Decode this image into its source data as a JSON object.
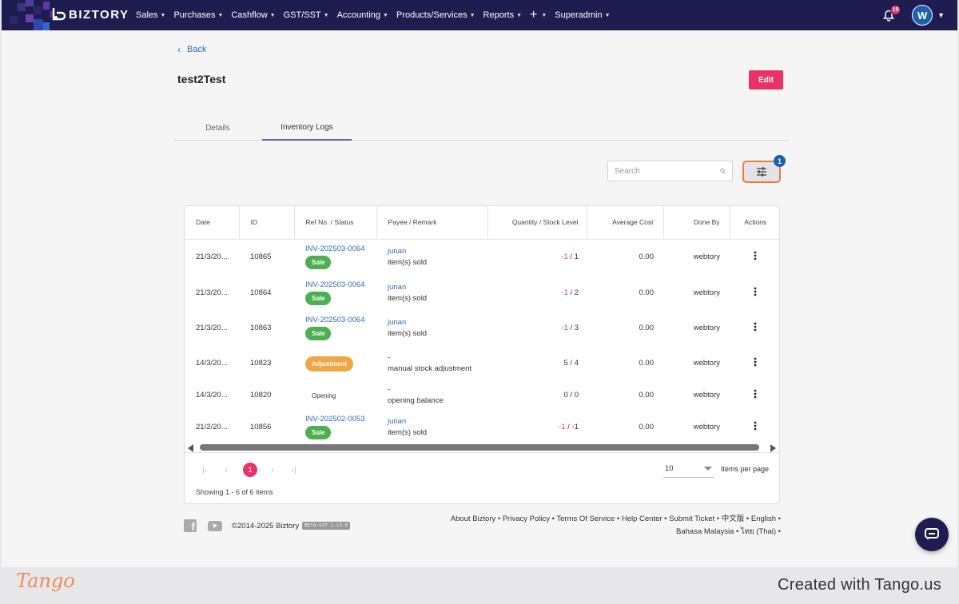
{
  "nav": {
    "brand": "BIZTORY",
    "menu": [
      {
        "label": "Sales"
      },
      {
        "label": "Purchases"
      },
      {
        "label": "Cashflow"
      },
      {
        "label": "GST/SST"
      },
      {
        "label": "Accounting"
      },
      {
        "label": "Products/Services"
      },
      {
        "label": "Reports"
      },
      {
        "label": "+"
      },
      {
        "label": "Superadmin"
      }
    ],
    "notification_count": "19",
    "avatar_initial": "W",
    "brand_color": "#1f1d4f"
  },
  "page": {
    "back_label": "Back",
    "title": "test2Test",
    "edit_label": "Edit",
    "accent_color": "#e8336a"
  },
  "tabs": [
    {
      "label": "Details",
      "active": false
    },
    {
      "label": "Inventory Logs",
      "active": true
    }
  ],
  "search": {
    "placeholder": "Search",
    "value": ""
  },
  "filter": {
    "badge": "1"
  },
  "table": {
    "columns": [
      "Date",
      "ID",
      "Ref No. / Status",
      "Payee / Remark",
      "Quantity / Stock Level",
      "Average Cost",
      "Done By",
      "Actions"
    ],
    "rows": [
      {
        "date": "21/3/20...",
        "id": "10865",
        "ref": "INV-202503-0064",
        "status": "Sale",
        "payee": "junan",
        "remark": "item(s) sold",
        "qty": "-1",
        "stock": "1",
        "cost": "0.00",
        "by": "webtory"
      },
      {
        "date": "21/3/20...",
        "id": "10864",
        "ref": "INV-202503-0064",
        "status": "Sale",
        "payee": "junan",
        "remark": "item(s) sold",
        "qty": "-1",
        "stock": "2",
        "cost": "0.00",
        "by": "webtory"
      },
      {
        "date": "21/3/20...",
        "id": "10863",
        "ref": "INV-202503-0064",
        "status": "Sale",
        "payee": "junan",
        "remark": "item(s) sold",
        "qty": "-1",
        "stock": "3",
        "cost": "0.00",
        "by": "webtory"
      },
      {
        "date": "14/3/20...",
        "id": "10823",
        "ref": "",
        "status": "Adjustment",
        "payee": "-",
        "remark": "manual stock adjustment",
        "qty": "5",
        "stock": "4",
        "cost": "0.00",
        "by": "webtory"
      },
      {
        "date": "14/3/20...",
        "id": "10820",
        "ref": "",
        "status": "Opening",
        "payee": "-",
        "remark": "opening balance",
        "qty": "0",
        "stock": "0",
        "cost": "0.00",
        "by": "webtory"
      },
      {
        "date": "21/2/20...",
        "id": "10856",
        "ref": "INV-202502-0053",
        "status": "Sale",
        "payee": "junan",
        "remark": "item(s) sold",
        "qty": "-1",
        "stock": "-1",
        "cost": "0.00",
        "by": "webtory"
      }
    ]
  },
  "pagination": {
    "current_page": "1",
    "per_page": "10",
    "per_page_label": "Items per page",
    "showing": "Showing 1 - 6 of 6 items"
  },
  "footer": {
    "copyright": "©2014-2025 Biztory",
    "version": "BETA-SIT 1.13.0",
    "links_line1": "About Biztory • Privacy Policy • Terms Of Service • Help Center • Submit Ticket • 中文版 • English •",
    "links_line2": "Bahasa Malaysia • ไทย (Thai) •"
  },
  "tango": {
    "logo": "Tango",
    "credit": "Created with Tango.us"
  }
}
